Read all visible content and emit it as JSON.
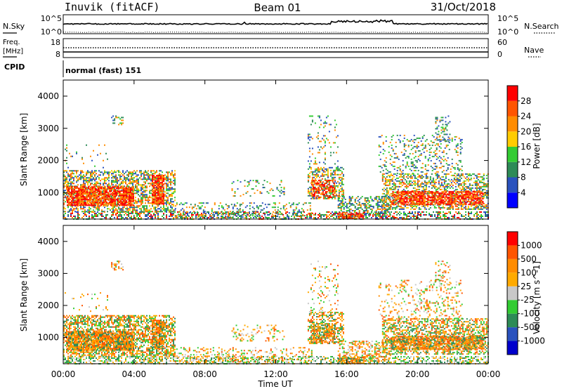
{
  "header": {
    "station": "Inuvik (fitACF)",
    "beam": "Beam 01",
    "date": "31/Oct/2018"
  },
  "top_strip": {
    "left_label": "N.Sky",
    "right_label": "N.Search",
    "left_ticks": [
      "10^5",
      "10^0"
    ],
    "right_ticks": [
      "10^5",
      "10^0"
    ]
  },
  "freq_strip": {
    "left_label_1": "Freq.",
    "left_label_2": "[MHz]",
    "right_label": "Nave",
    "left_ticks": [
      "18",
      "8"
    ],
    "right_ticks": [
      "60",
      "0"
    ]
  },
  "cpid": {
    "label": "CPID",
    "mode": "normal (fast) 151"
  },
  "chart_data": [
    {
      "type": "heatmap",
      "name": "power",
      "ylabel": "Slant Range [km]",
      "yticks": [
        "4000",
        "3000",
        "2000",
        "1000"
      ],
      "ytick_values": [
        4000,
        3000,
        2000,
        1000
      ],
      "ylim": [
        180,
        4500
      ],
      "colorbar_label": "Power [dB]",
      "colorbar_ticks": [
        "28",
        "24",
        "20",
        "16",
        "12",
        "8",
        "4"
      ],
      "colors": [
        "#0000ff",
        "#2a52be",
        "#2e8b57",
        "#33cc33",
        "#ffcc00",
        "#ff8c00",
        "#ff5500",
        "#ff0000"
      ]
    },
    {
      "type": "heatmap",
      "name": "velocity",
      "ylabel": "Slant Range [km]",
      "yticks": [
        "4000",
        "3000",
        "2000",
        "1000"
      ],
      "ytick_values": [
        4000,
        3000,
        2000,
        1000
      ],
      "ylim": [
        180,
        4500
      ],
      "colorbar_label": "Velocity [m s^-1]",
      "colorbar_ticks": [
        "1000",
        "500",
        "100",
        "25",
        "-25",
        "-100",
        "-500",
        "-1000"
      ],
      "colors": [
        "#0000cc",
        "#2a52be",
        "#2e8b57",
        "#33cc33",
        "#c8c8c8",
        "#ffaa00",
        "#ff8c00",
        "#ff5500",
        "#ff0000"
      ]
    }
  ],
  "xaxis": {
    "label": "Time UT",
    "ticks": [
      "00:00",
      "04:00",
      "08:00",
      "12:00",
      "16:00",
      "20:00",
      "00:00"
    ],
    "tick_hours": [
      0,
      4,
      8,
      12,
      16,
      20,
      24
    ]
  }
}
